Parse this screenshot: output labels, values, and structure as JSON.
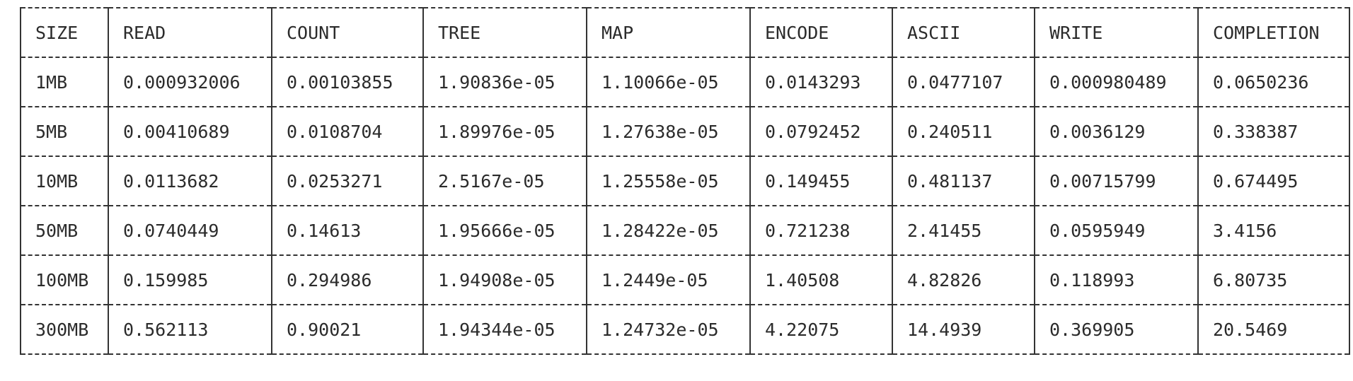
{
  "table": {
    "headers": [
      "SIZE",
      "READ",
      "COUNT",
      "TREE",
      "MAP",
      "ENCODE",
      "ASCII",
      "WRITE",
      "COMPLETION"
    ],
    "rows": [
      [
        "1MB",
        "0.000932006",
        "0.00103855",
        "1.90836e-05",
        "1.10066e-05",
        "0.0143293",
        "0.0477107",
        "0.000980489",
        "0.0650236"
      ],
      [
        "5MB",
        "0.00410689",
        "0.0108704",
        "1.89976e-05",
        "1.27638e-05",
        "0.0792452",
        "0.240511",
        "0.0036129",
        "0.338387"
      ],
      [
        "10MB",
        "0.0113682",
        "0.0253271",
        "2.5167e-05",
        "1.25558e-05",
        "0.149455",
        "0.481137",
        "0.00715799",
        "0.674495"
      ],
      [
        "50MB",
        "0.0740449",
        "0.14613",
        "1.95666e-05",
        "1.28422e-05",
        "0.721238",
        "2.41455",
        "0.0595949",
        "3.4156"
      ],
      [
        "100MB",
        "0.159985",
        "0.294986",
        "1.94908e-05",
        "1.2449e-05",
        "1.40508",
        "4.82826",
        "0.118993",
        "6.80735"
      ],
      [
        "300MB",
        "0.562113",
        "0.90021",
        "1.94344e-05",
        "1.24732e-05",
        "4.22075",
        "14.4939",
        "0.369905",
        "20.5469"
      ]
    ]
  }
}
